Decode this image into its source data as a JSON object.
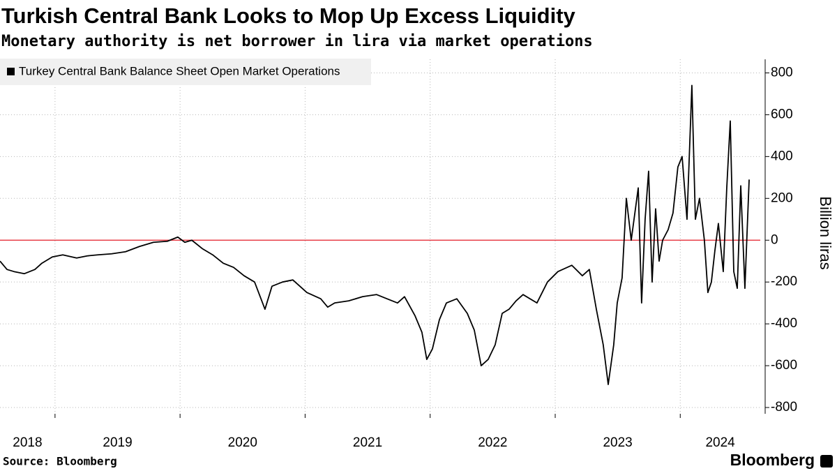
{
  "chart_data": {
    "type": "line",
    "title": "Turkish Central Bank Looks to Mop Up Excess Liquidity",
    "subtitle": "Monetary authority is net borrower in lira via market operations",
    "ylabel": "Billion liras",
    "source": "Source: Bloomberg",
    "logo": "Bloomberg",
    "xlim": [
      2018.56,
      2024.64
    ],
    "xticks": [
      2018,
      2019,
      2020,
      2021,
      2022,
      2023,
      2024
    ],
    "ylim": [
      -830,
      865
    ],
    "yticks": [
      -800,
      -600,
      -400,
      -200,
      0,
      200,
      400,
      600,
      800
    ],
    "grid": true,
    "reference_line": {
      "value": 0,
      "color": "#e8404a"
    },
    "x": [
      2018.56,
      2018.616,
      2018.672,
      2018.755,
      2018.839,
      2018.895,
      2018.978,
      2019.062,
      2019.173,
      2019.257,
      2019.341,
      2019.452,
      2019.564,
      2019.675,
      2019.787,
      2019.898,
      2019.982,
      2020.038,
      2020.094,
      2020.177,
      2020.261,
      2020.345,
      2020.428,
      2020.512,
      2020.596,
      2020.679,
      2020.735,
      2020.819,
      2020.902,
      2021.014,
      2021.125,
      2021.181,
      2021.237,
      2021.349,
      2021.46,
      2021.572,
      2021.655,
      2021.739,
      2021.795,
      2021.878,
      2021.934,
      2021.973,
      2022.018,
      2022.074,
      2022.13,
      2022.213,
      2022.297,
      2022.353,
      2022.408,
      2022.464,
      2022.52,
      2022.576,
      2022.631,
      2022.687,
      2022.743,
      2022.854,
      2022.938,
      2023.022,
      2023.133,
      2023.217,
      2023.273,
      2023.329,
      2023.384,
      2023.424,
      2023.468,
      2023.496,
      2023.535,
      2023.569,
      2023.608,
      2023.664,
      2023.691,
      2023.719,
      2023.747,
      2023.775,
      2023.803,
      2023.831,
      2023.859,
      2023.903,
      2023.942,
      2023.981,
      2024.015,
      2024.054,
      2024.093,
      2024.121,
      2024.154,
      2024.193,
      2024.221,
      2024.249,
      2024.277,
      2024.305,
      2024.344,
      2024.372,
      2024.4,
      2024.428,
      2024.456,
      2024.484,
      2024.517,
      2024.551
    ],
    "series": [
      {
        "name": "Turkey Central Bank Balance Sheet Open Market Operations",
        "color": "#000000",
        "values": [
          -100,
          -140,
          -150,
          -160,
          -140,
          -110,
          -80,
          -70,
          -85,
          -75,
          -70,
          -65,
          -55,
          -30,
          -10,
          -5,
          15,
          -10,
          0,
          -40,
          -70,
          -110,
          -130,
          -170,
          -200,
          -330,
          -220,
          -200,
          -190,
          -250,
          -280,
          -320,
          -300,
          -290,
          -270,
          -260,
          -280,
          -300,
          -270,
          -360,
          -440,
          -570,
          -520,
          -380,
          -300,
          -280,
          -350,
          -430,
          -600,
          -570,
          -500,
          -350,
          -330,
          -290,
          -260,
          -300,
          -200,
          -150,
          -120,
          -170,
          -140,
          -330,
          -500,
          -690,
          -500,
          -300,
          -180,
          200,
          0,
          250,
          -300,
          100,
          330,
          -200,
          150,
          -100,
          0,
          50,
          130,
          350,
          400,
          100,
          740,
          100,
          200,
          0,
          -250,
          -200,
          -50,
          80,
          -150,
          250,
          570,
          -150,
          -230,
          260,
          -230,
          290
        ]
      }
    ],
    "legend": "top-left"
  }
}
